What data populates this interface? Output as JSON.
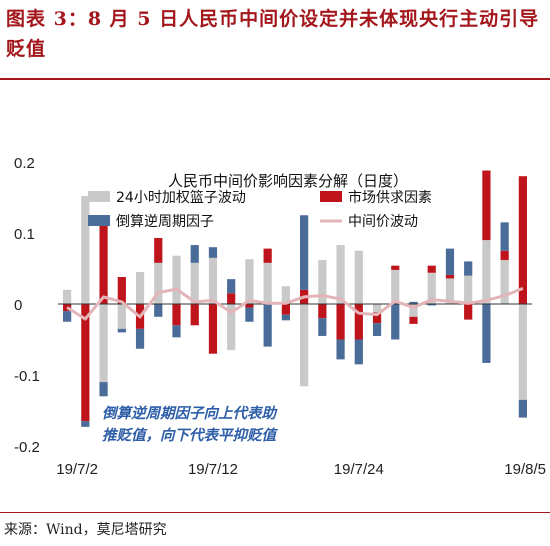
{
  "figure": {
    "title": "图表 3：8 月 5 日人民币中间价设定并未体现央行主动引导贬值",
    "source": "来源：Wind，莫尼塔研究"
  },
  "chart_data": {
    "type": "bar",
    "title": "人民币中间价影响因素分解（日度）",
    "ylim": [
      -0.2,
      0.2
    ],
    "yticks": [
      "0.2",
      "0.1",
      "0",
      "-0.1",
      "-0.2"
    ],
    "ytick_values": [
      0.2,
      0.1,
      0,
      -0.1,
      -0.2
    ],
    "xtick_labels": [
      {
        "index": 0,
        "label": "19/7/2"
      },
      {
        "index": 8,
        "label": "19/7/12"
      },
      {
        "index": 16,
        "label": "19/7/24"
      },
      {
        "index": 25,
        "label": "19/8/5"
      }
    ],
    "annotation": [
      "倒算逆周期因子向上代表助",
      "推贬值，向下代表平抑贬值"
    ],
    "colors": {
      "basket": "#c9c9c9",
      "market": "#c0141c",
      "ccf": "#4a6c98",
      "total": "#e3b5b8"
    },
    "series": [
      {
        "name": "24小时加权篮子波动",
        "key": "basket",
        "values": [
          0.02,
          0.152,
          -0.11,
          -0.035,
          0.045,
          0.058,
          0.068,
          0.058,
          0.065,
          -0.065,
          0.063,
          0.058,
          0.025,
          -0.116,
          0.062,
          0.083,
          0.075,
          -0.012,
          0.048,
          -0.018,
          0.044,
          0.036,
          0.04,
          0.09,
          0.062,
          -0.135
        ]
      },
      {
        "name": "市场供求因素",
        "key": "market",
        "values": [
          -0.01,
          -0.165,
          0.125,
          0.038,
          -0.035,
          0.035,
          -0.03,
          -0.03,
          -0.07,
          0.015,
          -0.005,
          0.02,
          -0.015,
          0.02,
          -0.02,
          -0.05,
          -0.05,
          -0.015,
          0.006,
          -0.01,
          0.01,
          0.005,
          -0.022,
          0.098,
          0.013,
          0.18
        ]
      },
      {
        "name": "倒算逆周期因子",
        "key": "ccf",
        "values": [
          -0.015,
          -0.008,
          -0.02,
          -0.005,
          -0.028,
          -0.018,
          -0.017,
          0.025,
          0.015,
          0.02,
          -0.02,
          -0.06,
          -0.008,
          0.105,
          -0.025,
          -0.028,
          -0.035,
          -0.018,
          -0.05,
          0.003,
          -0.002,
          0.037,
          0.02,
          -0.083,
          0.04,
          -0.025
        ]
      },
      {
        "name": "中间价波动",
        "key": "total",
        "values": [
          -0.005,
          -0.021,
          0.01,
          0.003,
          -0.018,
          0.016,
          0.021,
          0.003,
          0.005,
          -0.012,
          0.005,
          0.001,
          0.001,
          0.01,
          0.012,
          0.007,
          -0.013,
          -0.015,
          0.004,
          -0.005,
          0.006,
          0.004,
          0.001,
          0.005,
          0.012,
          0.022
        ]
      }
    ]
  }
}
